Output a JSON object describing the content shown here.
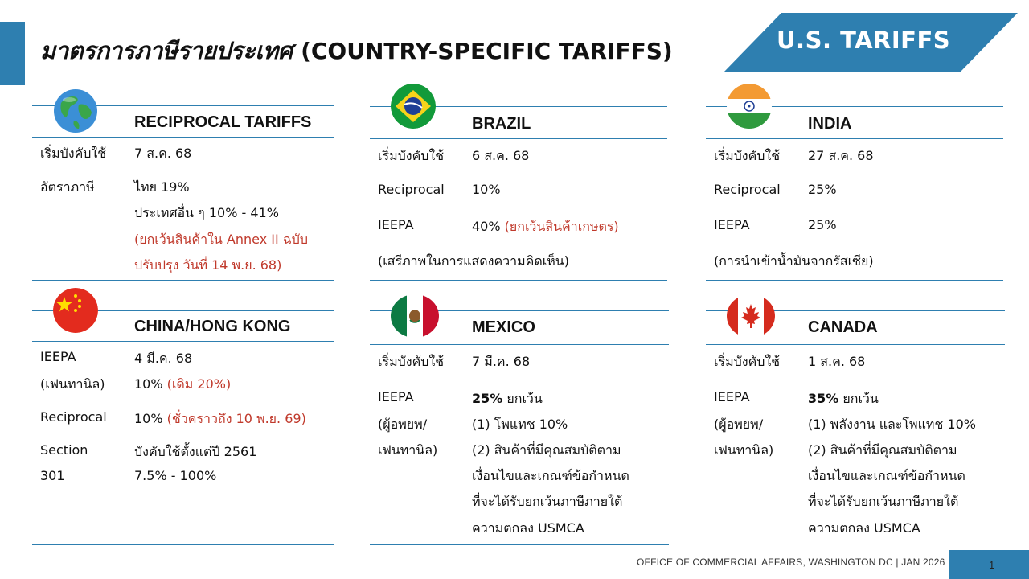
{
  "header": {
    "title_thai": "มาตรการภาษีรายประเทศ",
    "title_en": "(COUNTRY-SPECIFIC TARIFFS)",
    "banner": "U.S. TARIFFS"
  },
  "cards": {
    "reciprocal": {
      "name": "RECIPROCAL TARIFFS",
      "flag_icon": "globe-icon",
      "r1_label": "เริ่มบังคับใช้",
      "r1_value": "7 ส.ค. 68",
      "r2_label": "อัตราภาษี",
      "r2_value_a": "ไทย 19%",
      "r2_value_b": "ประเทศอื่น ๆ 10% - 41%",
      "r2_note_a": "(ยกเว้นสินค้าใน Annex II ฉบับ",
      "r2_note_b": "ปรับปรุง วันที่ 14 พ.ย. 68)"
    },
    "brazil": {
      "name": "BRAZIL",
      "flag_icon": "brazil-flag-icon",
      "r1_label": "เริ่มบังคับใช้",
      "r1_value": "6 ส.ค. 68",
      "r2_label": "Reciprocal",
      "r2_value": "10%",
      "r3_label": "IEEPA",
      "r3_value": "40%",
      "r3_note": "(ยกเว้นสินค้าเกษตร)",
      "footnote": "(เสรีภาพในการแสดงความคิดเห็น)"
    },
    "india": {
      "name": "INDIA",
      "flag_icon": "india-flag-icon",
      "r1_label": "เริ่มบังคับใช้",
      "r1_value": "27 ส.ค. 68",
      "r2_label": "Reciprocal",
      "r2_value": "25%",
      "r3_label": "IEEPA",
      "r3_value": "25%",
      "footnote": "(การนำเข้าน้ำมันจากรัสเซีย)"
    },
    "china": {
      "name": "CHINA/HONG KONG",
      "flag_icon": "china-flag-icon",
      "r1_label": "IEEPA",
      "r1_value": "4 มี.ค. 68",
      "r2_label": "(เฟนทานิล)",
      "r2_value": "10%",
      "r2_note": "(เดิม 20%)",
      "r3_label": "Reciprocal",
      "r3_value": "10%",
      "r3_note": "(ชั่วคราวถึง 10 พ.ย. 69)",
      "r4_label": "Section",
      "r4_value": "บังคับใช้ตั้งแต่ปี 2561",
      "r5_label": "301",
      "r5_value": "7.5% - 100%"
    },
    "mexico": {
      "name": "MEXICO",
      "flag_icon": "mexico-flag-icon",
      "r1_label": "เริ่มบังคับใช้",
      "r1_value": "7 มี.ค. 68",
      "r2_label": "IEEPA",
      "r2_value": "25%",
      "r2_suffix": " ยกเว้น",
      "r3_label": "(ผู้อพยพ/",
      "r3_value": "(1) โพแทช 10%",
      "r4_label": "เฟนทานิล)",
      "r4_value": "(2) สินค้าที่มีคุณสมบัติตาม",
      "r5_value": "เงื่อนไขและเกณฑ์ข้อกำหนด",
      "r6_value": "ที่จะได้รับยกเว้นภาษีภายใต้",
      "r7_value": "ความตกลง USMCA"
    },
    "canada": {
      "name": "CANADA",
      "flag_icon": "canada-flag-icon",
      "r1_label": "เริ่มบังคับใช้",
      "r1_value": "1 ส.ค. 68",
      "r2_label": "IEEPA",
      "r2_value": "35%",
      "r2_suffix": " ยกเว้น",
      "r3_label": "(ผู้อพยพ/",
      "r3_value": "(1) พลังงาน และโพแทช 10%",
      "r4_label": "เฟนทานิล)",
      "r4_value": "(2) สินค้าที่มีคุณสมบัติตาม",
      "r5_value": "เงื่อนไขและเกณฑ์ข้อกำหนด",
      "r6_value": "ที่จะได้รับยกเว้นภาษีภายใต้",
      "r7_value": "ความตกลง USMCA"
    }
  },
  "footer": {
    "text": "OFFICE OF COMMERCIAL AFFAIRS, WASHINGTON DC | JAN 2026",
    "page": "1"
  },
  "colors": {
    "accent": "#2e7fb0",
    "note_red": "#c0392b"
  }
}
